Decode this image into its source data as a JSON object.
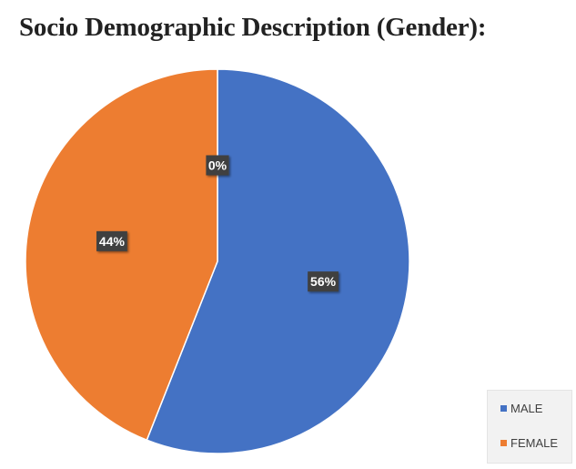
{
  "chart_data": {
    "type": "pie",
    "title": "Socio Demographic Description (Gender):",
    "categories": [
      "MALE",
      "FEMALE",
      ""
    ],
    "values": [
      56,
      44,
      0
    ],
    "data_labels": [
      "56%",
      "44%",
      "0%"
    ],
    "colors": [
      "#4472c4",
      "#ed7d31",
      "#a5a5a5"
    ],
    "start_angle_deg": 0,
    "direction": "clockwise",
    "legend": {
      "position": "bottom-right",
      "items": [
        {
          "label": "MALE",
          "color": "#4472c4"
        },
        {
          "label": "FEMALE",
          "color": "#ed7d31"
        }
      ]
    }
  }
}
